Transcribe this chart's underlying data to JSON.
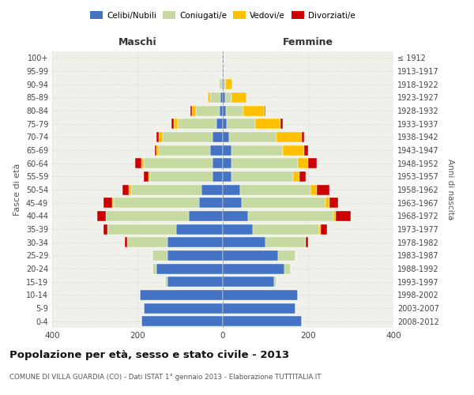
{
  "age_groups": [
    "0-4",
    "5-9",
    "10-14",
    "15-19",
    "20-24",
    "25-29",
    "30-34",
    "35-39",
    "40-44",
    "45-49",
    "50-54",
    "55-59",
    "60-64",
    "65-69",
    "70-74",
    "75-79",
    "80-84",
    "85-89",
    "90-94",
    "95-99",
    "100+"
  ],
  "birth_years": [
    "2008-2012",
    "2003-2007",
    "1998-2002",
    "1993-1997",
    "1988-1992",
    "1983-1987",
    "1978-1982",
    "1973-1977",
    "1968-1972",
    "1963-1967",
    "1958-1962",
    "1953-1957",
    "1948-1952",
    "1943-1947",
    "1938-1942",
    "1933-1937",
    "1928-1932",
    "1923-1927",
    "1918-1922",
    "1913-1917",
    "≤ 1912"
  ],
  "males": {
    "celibi": [
      190,
      185,
      195,
      130,
      155,
      130,
      130,
      110,
      80,
      55,
      50,
      25,
      25,
      30,
      25,
      15,
      8,
      5,
      2,
      1,
      2
    ],
    "coniugati": [
      0,
      0,
      0,
      5,
      10,
      35,
      95,
      160,
      195,
      200,
      165,
      145,
      160,
      120,
      115,
      90,
      55,
      25,
      5,
      0,
      0
    ],
    "vedovi": [
      0,
      0,
      0,
      0,
      0,
      0,
      0,
      0,
      0,
      5,
      5,
      5,
      5,
      5,
      10,
      10,
      10,
      5,
      2,
      0,
      0
    ],
    "divorziati": [
      0,
      0,
      0,
      0,
      0,
      0,
      5,
      10,
      20,
      20,
      15,
      10,
      15,
      5,
      5,
      5,
      2,
      0,
      0,
      0,
      0
    ]
  },
  "females": {
    "nubili": [
      185,
      170,
      175,
      120,
      145,
      130,
      100,
      70,
      60,
      45,
      40,
      20,
      20,
      20,
      15,
      10,
      8,
      5,
      2,
      1,
      1
    ],
    "coniugate": [
      0,
      0,
      0,
      5,
      15,
      40,
      95,
      155,
      200,
      195,
      165,
      145,
      155,
      120,
      110,
      65,
      40,
      15,
      5,
      0,
      0
    ],
    "vedove": [
      0,
      0,
      0,
      0,
      0,
      0,
      0,
      5,
      5,
      10,
      15,
      15,
      25,
      50,
      60,
      60,
      50,
      35,
      15,
      1,
      1
    ],
    "divorziate": [
      0,
      0,
      0,
      0,
      0,
      0,
      5,
      15,
      35,
      20,
      30,
      15,
      20,
      10,
      5,
      5,
      2,
      0,
      0,
      0,
      0
    ]
  },
  "color_celibi": "#4472c4",
  "color_coniugati": "#c5d9a0",
  "color_vedovi": "#ffc000",
  "color_divorziati": "#cc0000",
  "title": "Popolazione per età, sesso e stato civile - 2013",
  "subtitle": "COMUNE DI VILLA GUARDIA (CO) - Dati ISTAT 1° gennaio 2013 - Elaborazione TUTTITALIA.IT",
  "xlabel_left": "Maschi",
  "xlabel_right": "Femmine",
  "ylabel_left": "Fasce di età",
  "ylabel_right": "Anni di nascita",
  "xlim": 400,
  "bg_color": "#f0f0eb",
  "grid_color": "#cccccc"
}
